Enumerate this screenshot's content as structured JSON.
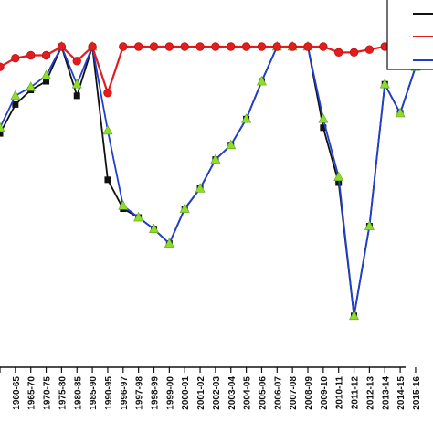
{
  "chart_data": {
    "type": "line",
    "title": "",
    "xlabel": "",
    "ylabel": "",
    "categories": [
      "",
      "1960-65",
      "1965-70",
      "1970-75",
      "1975-80",
      "1980-85",
      "1985-90",
      "1990-95",
      "1996-97",
      "1997-98",
      "1998-99",
      "1999-00",
      "2000-01",
      "2001-02",
      "2002-03",
      "2003-04",
      "2004-05",
      "2005-06",
      "2006-07",
      "2007-08",
      "2008-09",
      "2009-10",
      "2010-11",
      "2011-12",
      "2012-13",
      "2013-14",
      "2014-15",
      "2015-16"
    ],
    "ylim": [
      0,
      100
    ],
    "grid": false,
    "legend": "top-right",
    "series": [
      {
        "color": "#111111",
        "marker": "square",
        "values": [
          70,
          80,
          85,
          88,
          100,
          83,
          100,
          54,
          44,
          41,
          37,
          32,
          44,
          51,
          61,
          66,
          75,
          88,
          100,
          100,
          100,
          72,
          53,
          7,
          38,
          87,
          77,
          93
        ]
      },
      {
        "color": "#e11d1d",
        "marker": "circle",
        "values": [
          93,
          96,
          97,
          97,
          100,
          95,
          100,
          84,
          100,
          100,
          100,
          100,
          100,
          100,
          100,
          100,
          100,
          100,
          100,
          100,
          100,
          100,
          98,
          98,
          99,
          100,
          100,
          100
        ]
      },
      {
        "color": "#1f3fd1",
        "marker": "triangle",
        "values": [
          72,
          83,
          86,
          90,
          100,
          87,
          100,
          71,
          45,
          41,
          37,
          32,
          44,
          51,
          61,
          66,
          75,
          88,
          100,
          100,
          100,
          75,
          55,
          7,
          38,
          87,
          77,
          93
        ]
      }
    ]
  }
}
